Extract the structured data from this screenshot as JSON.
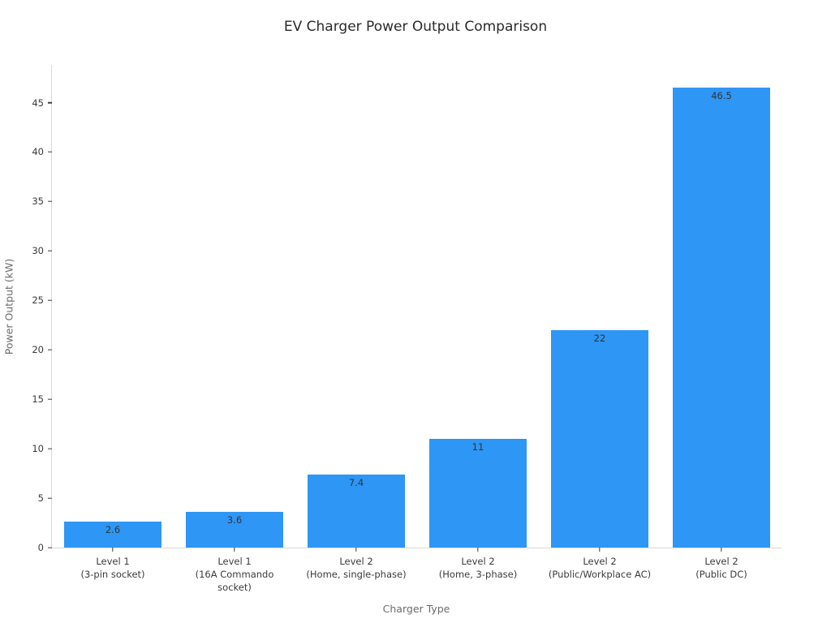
{
  "chart_data": {
    "type": "bar",
    "title": "EV Charger Power Output Comparison",
    "xlabel": "Charger Type",
    "ylabel": "Power Output (kW)",
    "categories": [
      "Level 1\n(3-pin socket)",
      "Level 1\n(16A Commando\nsocket)",
      "Level 2\n(Home, single-phase)",
      "Level 2\n(Home, 3-phase)",
      "Level 2\n(Public/Workplace AC)",
      "Level 2\n(Public DC)"
    ],
    "values": [
      2.6,
      3.6,
      7.4,
      11,
      22,
      46.5
    ],
    "value_labels": [
      "2.6",
      "3.6",
      "7.4",
      "11",
      "22",
      "46.5"
    ],
    "yticks": [
      0,
      5,
      10,
      15,
      20,
      25,
      30,
      35,
      40,
      45
    ],
    "ylim": [
      0,
      48.9
    ],
    "bar_color": "#2e96f5",
    "value_label_color": "#333333",
    "tick_label_color": "#3b3b3b",
    "axis_title_color": "#6b6b6b",
    "spine_color": "#d9d9d9",
    "grid": false,
    "legend": false,
    "bar_width_fraction": 0.8
  }
}
